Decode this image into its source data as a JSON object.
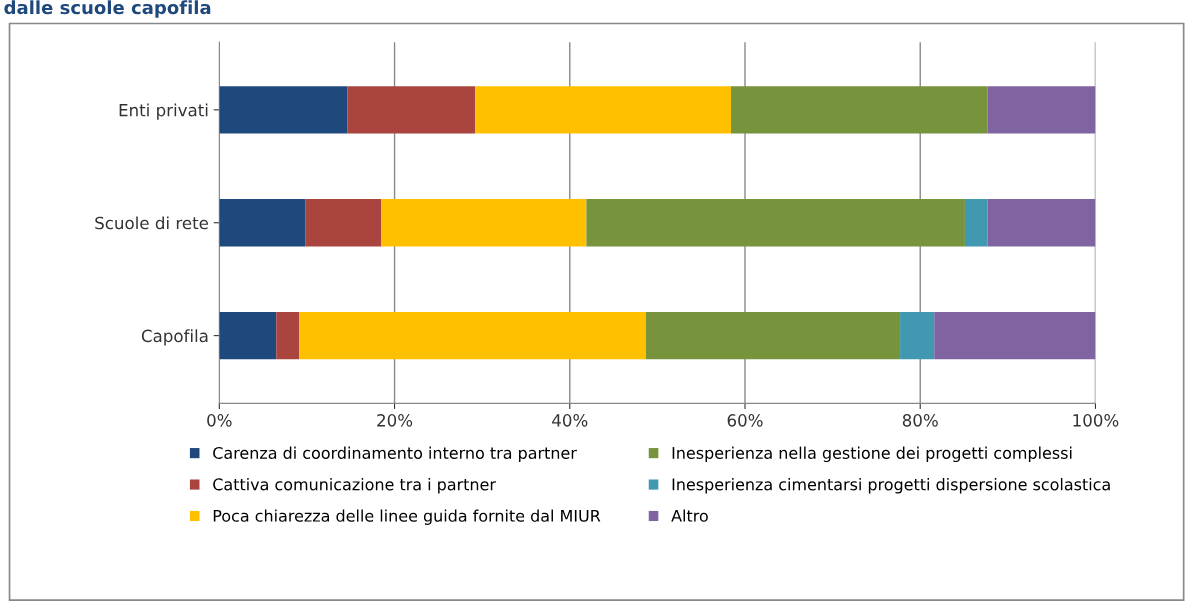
{
  "chart_data": {
    "type": "bar",
    "orientation": "horizontal",
    "stacked": true,
    "title": "dalle scuole capofila",
    "categories": [
      "Enti privati",
      "Scuole di rete",
      "Capofila"
    ],
    "series": [
      {
        "name": "Carenza di coordinamento interno tra partner",
        "color": "#1f497d",
        "values": [
          14.6,
          9.8,
          6.5
        ]
      },
      {
        "name": "Cattiva comunicazione tra i partner",
        "color": "#a9443f",
        "values": [
          14.6,
          8.7,
          2.6
        ]
      },
      {
        "name": "Poca chiarezza delle linee guida fornite dal MIUR",
        "color": "#ffc000",
        "values": [
          29.2,
          23.4,
          39.6
        ]
      },
      {
        "name": "Inesperienza nella gestione dei progetti complessi",
        "color": "#77933c",
        "values": [
          29.3,
          43.2,
          29.0
        ]
      },
      {
        "name": "Inesperienza cimentarsi progetti dispersione scolastica",
        "color": "#4099b0",
        "values": [
          0,
          2.6,
          3.9
        ]
      },
      {
        "name": "Altro",
        "color": "#8064a2",
        "values": [
          12.3,
          12.3,
          18.4
        ]
      }
    ],
    "xlim": [
      0,
      100
    ],
    "xticks": [
      {
        "value": 0,
        "label": "0%"
      },
      {
        "value": 20,
        "label": "20%"
      },
      {
        "value": 40,
        "label": "40%"
      },
      {
        "value": 60,
        "label": "60%"
      },
      {
        "value": 80,
        "label": "80%"
      },
      {
        "value": 100,
        "label": "100%"
      }
    ],
    "grid": "x",
    "legend": "bottom"
  }
}
